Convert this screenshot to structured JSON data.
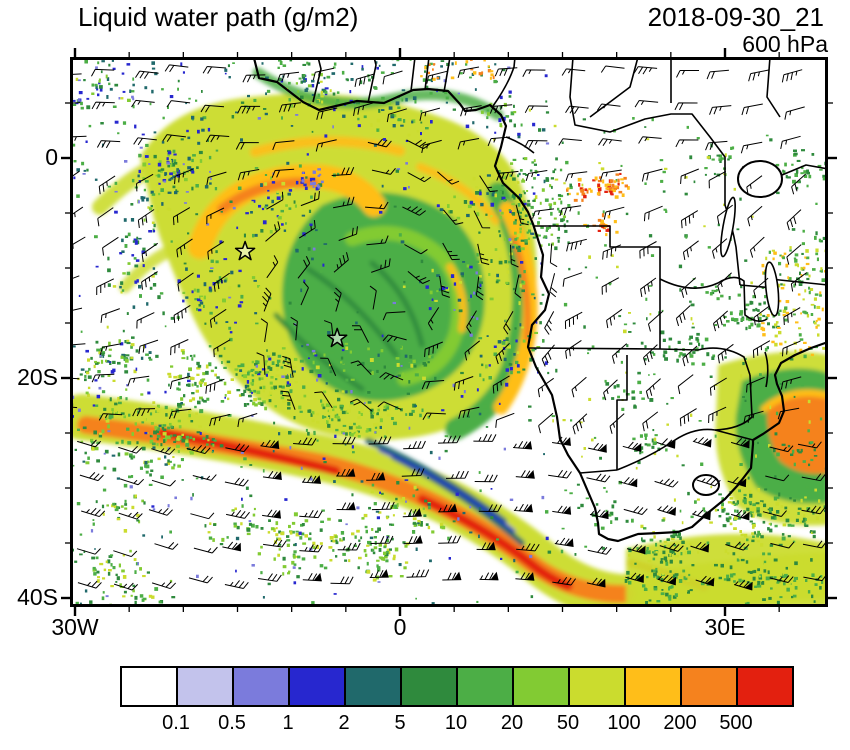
{
  "header": {
    "title": "Liquid water path (g/m2)",
    "datetime": "2018-09-30_21",
    "level": "600 hPa"
  },
  "chart_data": {
    "type": "heatmap",
    "title": "Liquid water path (g/m2)",
    "timestamp": "2018-09-30_21",
    "pressure_level": "600 hPa",
    "units": "g/m2",
    "region": "Southeast Atlantic and Southern Africa",
    "x_axis": {
      "label": "longitude",
      "tick_labels": [
        "30W",
        "0",
        "30E"
      ],
      "tick_lons": [
        -30,
        0,
        30
      ],
      "range_deg": [
        -30.5,
        39.5
      ],
      "minor_tick_deg": 5
    },
    "y_axis": {
      "label": "latitude",
      "tick_labels": [
        "0",
        "20S",
        "40S"
      ],
      "tick_lats": [
        0,
        -20,
        -40
      ],
      "range_deg": [
        9.2,
        -40.8
      ],
      "minor_tick_deg": 5
    },
    "colorbar": {
      "levels": [
        0.1,
        0.5,
        1,
        2,
        5,
        10,
        20,
        50,
        100,
        200,
        500
      ],
      "labels": [
        "0.1",
        "0.5",
        "1",
        "2",
        "5",
        "10",
        "20",
        "50",
        "100",
        "200",
        "500"
      ],
      "colors": [
        "#FFFFFF",
        "#C3C3EC",
        "#7B7BDC",
        "#2727CF",
        "#20696B",
        "#2F8A3D",
        "#4CAE46",
        "#82CB33",
        "#CBDC2E",
        "#FFBE19",
        "#F5821E",
        "#E3200F"
      ]
    },
    "overlays": [
      "filled LWP contours",
      "wind barbs",
      "coastlines",
      "country borders",
      "lakes"
    ],
    "markers": [
      {
        "type": "open-star",
        "lon": -14.3,
        "lat": -8.5
      },
      {
        "type": "open-star",
        "lon": -5.8,
        "lat": -16.4
      }
    ],
    "features": [
      "large cloud system over SE Atlantic (~25W-10E, 0-25S) with LWP 50-100 g/m2 and orange cores 100-200 g/m2",
      "narrow frontal band with LWP 200-500 g/m2 stretching from ~27W,28S toward ~15E,41S",
      "speckled 1-20 g/m2 field over Southern Ocean, Gulf of Guinea and Congo basin",
      "mostly clear southern African interior; orange maximum at eastern map edge near 37E,21S",
      "strong westerly wind barbs with pennants along 30S-40S"
    ]
  }
}
